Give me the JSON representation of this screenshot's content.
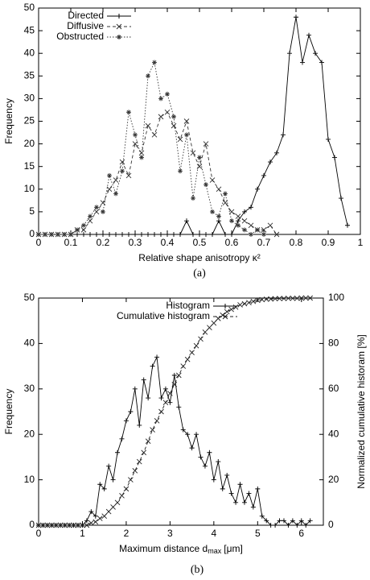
{
  "chart_data": [
    {
      "type": "line",
      "caption": "(a)",
      "x_label": "Relative shape anisotropy κ²",
      "y_label": "Frequency",
      "legend": "upper left",
      "x": [
        0,
        0.02,
        0.04,
        0.06,
        0.08,
        0.1,
        0.12,
        0.14,
        0.16,
        0.18,
        0.2,
        0.22,
        0.24,
        0.26,
        0.28,
        0.3,
        0.32,
        0.34,
        0.36,
        0.38,
        0.4,
        0.42,
        0.44,
        0.46,
        0.48,
        0.5,
        0.52,
        0.54,
        0.56,
        0.58,
        0.6,
        0.62,
        0.64,
        0.66,
        0.68,
        0.7,
        0.72,
        0.74,
        0.76,
        0.78,
        0.8,
        0.82,
        0.84,
        0.86,
        0.88,
        0.9,
        0.92,
        0.94,
        0.96
      ],
      "series": [
        {
          "name": "Directed",
          "color": "#000000",
          "dash": "solid",
          "marker": "plus",
          "values": [
            0,
            0,
            0,
            0,
            0,
            0,
            0,
            0,
            0,
            0,
            0,
            0,
            0,
            0,
            0,
            0,
            0,
            0,
            0,
            0,
            0,
            0,
            0,
            3,
            0,
            0,
            0,
            0,
            3,
            0,
            0,
            3,
            5,
            6,
            10,
            13,
            16,
            18,
            22,
            40,
            48,
            38,
            44,
            40,
            38,
            21,
            17,
            8,
            2
          ]
        },
        {
          "name": "Diffusive",
          "color": "#333333",
          "dash": "dashed",
          "marker": "cross",
          "values": [
            0,
            0,
            0,
            0,
            0,
            0,
            1,
            1,
            3,
            5,
            7,
            10,
            12,
            16,
            13,
            20,
            18,
            24,
            22,
            26,
            27,
            24,
            21,
            25,
            18,
            15,
            20,
            12,
            10,
            7,
            5,
            4,
            3,
            2,
            1,
            1,
            2,
            0,
            null,
            null,
            null,
            null,
            null,
            null,
            null,
            null,
            null,
            null,
            null
          ]
        },
        {
          "name": "Obstructed",
          "color": "#333333",
          "dash": "dotted",
          "marker": "star",
          "values": [
            0,
            0,
            0,
            0,
            0,
            0,
            1,
            2,
            4,
            6,
            5,
            13,
            9,
            14,
            27,
            22,
            17,
            35,
            38,
            30,
            31,
            26,
            14,
            22,
            8,
            17,
            11,
            5,
            4,
            9,
            3,
            2,
            1,
            0,
            1,
            0,
            null,
            null,
            null,
            null,
            null,
            null,
            null,
            null,
            null,
            null,
            null,
            null,
            null
          ]
        }
      ],
      "xlim": [
        0,
        1
      ],
      "xticks": [
        0,
        0.1,
        0.2,
        0.3,
        0.4,
        0.5,
        0.6,
        0.7,
        0.8,
        0.9,
        1
      ],
      "ylim": [
        0,
        50
      ],
      "yticks": [
        0,
        5,
        10,
        15,
        20,
        25,
        30,
        35,
        40,
        45,
        50
      ]
    },
    {
      "type": "line",
      "caption": "(b)",
      "x_label": "Maximum distance d",
      "x_label_sub": "max",
      "x_label_unit": "[μm]",
      "y_label": "Frequency",
      "y2_label": "Normalized cumulative historam [%]",
      "legend": "upper center",
      "x": [
        0,
        0.1,
        0.2,
        0.3,
        0.4,
        0.5,
        0.6,
        0.7,
        0.8,
        0.9,
        1,
        1.1,
        1.2,
        1.3,
        1.4,
        1.5,
        1.6,
        1.7,
        1.8,
        1.9,
        2,
        2.1,
        2.2,
        2.3,
        2.4,
        2.5,
        2.6,
        2.7,
        2.8,
        2.9,
        3,
        3.1,
        3.2,
        3.3,
        3.4,
        3.5,
        3.6,
        3.7,
        3.8,
        3.9,
        4,
        4.1,
        4.2,
        4.3,
        4.4,
        4.5,
        4.6,
        4.7,
        4.8,
        4.9,
        5,
        5.1,
        5.2,
        5.3,
        5.4,
        5.5,
        5.6,
        5.7,
        5.8,
        5.9,
        6,
        6.1,
        6.2
      ],
      "series": [
        {
          "name": "Histogram",
          "color": "#000000",
          "dash": "solid",
          "marker": "plus",
          "values": [
            0,
            0,
            0,
            0,
            0,
            0,
            0,
            0,
            0,
            0,
            0,
            1,
            3,
            2,
            9,
            8,
            13,
            10,
            16,
            19,
            23,
            25,
            30,
            22,
            32,
            28,
            35,
            37,
            28,
            30,
            27,
            33,
            26,
            21,
            20,
            17,
            20,
            15,
            13,
            16,
            10,
            14,
            8,
            11,
            7,
            5,
            9,
            5,
            7,
            4,
            8,
            2,
            1,
            0,
            0,
            1,
            1,
            0,
            1,
            0,
            1,
            0,
            1
          ]
        },
        {
          "name": "Cumulative histogram",
          "color": "#222222",
          "dash": "dashed",
          "marker": "cross",
          "axis": "y2",
          "values": [
            0,
            0,
            0,
            0,
            0,
            0,
            0,
            0,
            0,
            0,
            0,
            0,
            1,
            1.5,
            3,
            4,
            6,
            8,
            10,
            13,
            16,
            20,
            24,
            28,
            32,
            37,
            42,
            46,
            50,
            54,
            58,
            62,
            66,
            70,
            73,
            76,
            79,
            82,
            85,
            87,
            89,
            91,
            92.5,
            94,
            95,
            96,
            97,
            97.5,
            98,
            98.5,
            99,
            99.3,
            99.5,
            99.6,
            99.7,
            99.8,
            99.8,
            99.9,
            99.9,
            99.9,
            100,
            100,
            100
          ]
        }
      ],
      "xlim": [
        0,
        6.5
      ],
      "xticks": [
        0,
        1,
        2,
        3,
        4,
        5,
        6
      ],
      "ylim": [
        0,
        50
      ],
      "yticks": [
        0,
        10,
        20,
        30,
        40,
        50
      ],
      "y2lim": [
        0,
        100
      ],
      "y2ticks": [
        0,
        20,
        40,
        60,
        80,
        100
      ]
    }
  ]
}
